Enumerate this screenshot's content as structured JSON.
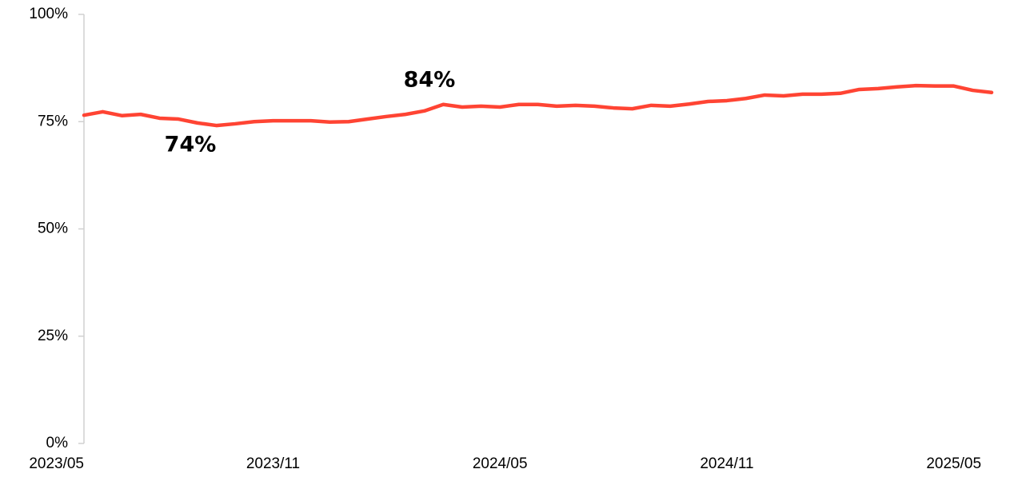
{
  "chart_data": {
    "type": "line",
    "categories": [
      "2023/05",
      null,
      null,
      null,
      null,
      null,
      null,
      null,
      null,
      null,
      "2023/11",
      null,
      null,
      null,
      null,
      null,
      null,
      null,
      null,
      null,
      null,
      null,
      "2024/05",
      null,
      null,
      null,
      null,
      null,
      null,
      null,
      null,
      null,
      null,
      null,
      "2024/11",
      null,
      null,
      null,
      null,
      null,
      null,
      null,
      null,
      null,
      null,
      null,
      "2025/05",
      null,
      null
    ],
    "series": [
      {
        "color": "#ff4433",
        "values": [
          76.5,
          77.3,
          76.4,
          76.7,
          75.8,
          75.6,
          74.7,
          74.1,
          74.5,
          75.0,
          75.2,
          75.2,
          75.2,
          74.9,
          75.0,
          75.6,
          76.2,
          76.7,
          77.5,
          79.0,
          78.4,
          78.6,
          78.4,
          79.0,
          79.0,
          78.6,
          78.8,
          78.6,
          78.2,
          78.0,
          78.8,
          78.6,
          79.1,
          79.7,
          79.9,
          80.4,
          81.2,
          81.0,
          81.4,
          81.4,
          81.6,
          82.5,
          82.7,
          83.1,
          83.4,
          83.3,
          83.3,
          82.3,
          81.8
        ]
      }
    ],
    "ylim": [
      0,
      100
    ],
    "yticks": [
      {
        "value": 0,
        "label": "0%"
      },
      {
        "value": 25,
        "label": "25%"
      },
      {
        "value": 50,
        "label": "50%"
      },
      {
        "value": 75,
        "label": "75%"
      },
      {
        "value": 100,
        "label": "100%"
      }
    ],
    "annotations": [
      "84%",
      "74%"
    ],
    "grid": false
  }
}
